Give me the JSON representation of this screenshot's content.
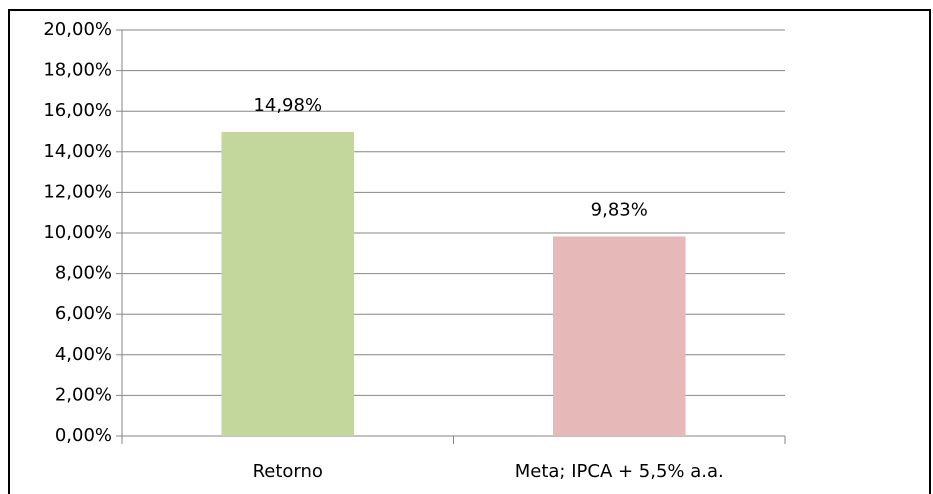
{
  "chart_data": {
    "type": "bar",
    "categories": [
      "Retorno",
      "Meta; IPCA + 5,5% a.a."
    ],
    "values": [
      14.98,
      9.83
    ],
    "value_labels": [
      "14,98%",
      "9,83%"
    ],
    "colors": [
      "#c3d69b",
      "#e6b9b8"
    ],
    "ylim": [
      0,
      20
    ],
    "yticks": [
      {
        "value": 0,
        "label": "0,00%"
      },
      {
        "value": 2,
        "label": "2,00%"
      },
      {
        "value": 4,
        "label": "4,00%"
      },
      {
        "value": 6,
        "label": "6,00%"
      },
      {
        "value": 8,
        "label": "8,00%"
      },
      {
        "value": 10,
        "label": "10,00%"
      },
      {
        "value": 12,
        "label": "12,00%"
      },
      {
        "value": 14,
        "label": "14,00%"
      },
      {
        "value": 16,
        "label": "16,00%"
      },
      {
        "value": 18,
        "label": "18,00%"
      },
      {
        "value": 20,
        "label": "20,00%"
      }
    ],
    "grid": true
  }
}
